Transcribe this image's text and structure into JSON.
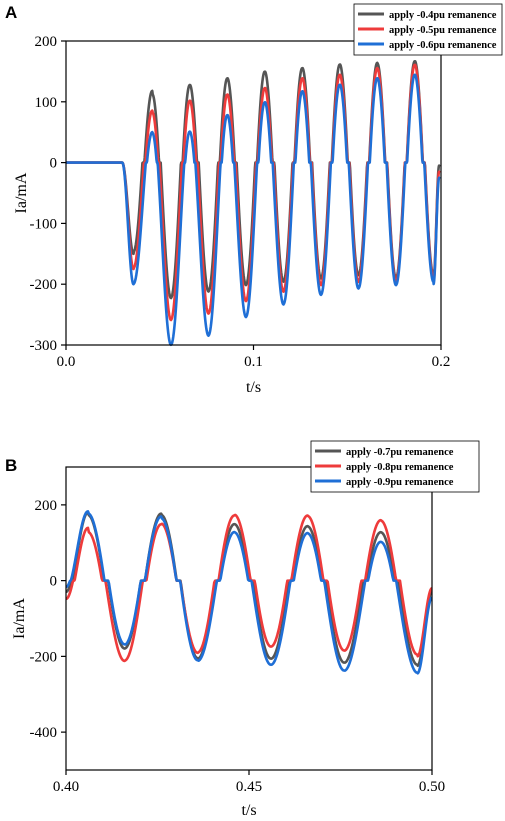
{
  "chart_data": [
    {
      "panel_label": "A",
      "type": "line",
      "xlabel": "t/s",
      "ylabel": "Ia/mA",
      "xlim": [
        0.0,
        0.2
      ],
      "ylim": [
        -300,
        200
      ],
      "xticks": [
        0.0,
        0.1,
        0.2
      ],
      "xtick_labels": [
        "0.0",
        "0.1",
        "0.2"
      ],
      "yticks": [
        200,
        100,
        0,
        -100,
        -200,
        -300
      ],
      "ytick_labels": [
        "200",
        "100",
        "0",
        "-100",
        "-200",
        "-300"
      ],
      "legend_position": "top-right",
      "grid": false,
      "series": [
        {
          "name": "apply  -0.4pu remanence",
          "color": "#555555",
          "x": [
            0.0,
            0.03,
            0.036,
            0.046,
            0.056,
            0.066,
            0.076,
            0.086,
            0.096,
            0.106,
            0.116,
            0.126,
            0.136,
            0.146,
            0.156,
            0.166,
            0.176,
            0.186,
            0.196,
            0.199
          ],
          "y": [
            0,
            0,
            -150,
            125,
            -225,
            140,
            -215,
            150,
            -205,
            160,
            -200,
            165,
            -195,
            170,
            -190,
            172,
            -195,
            175,
            -190,
            -5
          ]
        },
        {
          "name": "apply  -0.5pu remanence",
          "color": "#ee3b3b",
          "x": [
            0.0,
            0.03,
            0.036,
            0.046,
            0.056,
            0.066,
            0.076,
            0.086,
            0.096,
            0.106,
            0.116,
            0.126,
            0.136,
            0.146,
            0.156,
            0.166,
            0.176,
            0.186,
            0.196,
            0.199
          ],
          "y": [
            0,
            0,
            -175,
            95,
            -260,
            115,
            -250,
            125,
            -230,
            135,
            -215,
            150,
            -205,
            155,
            -200,
            165,
            -200,
            170,
            -195,
            -15
          ]
        },
        {
          "name": "apply  -0.6pu remanence",
          "color": "#1f6fd6",
          "x": [
            0.0,
            0.03,
            0.036,
            0.046,
            0.056,
            0.066,
            0.076,
            0.086,
            0.096,
            0.106,
            0.116,
            0.126,
            0.136,
            0.146,
            0.156,
            0.166,
            0.176,
            0.186,
            0.196,
            0.199
          ],
          "y": [
            0,
            0,
            -200,
            58,
            -300,
            60,
            -285,
            90,
            -255,
            112,
            -235,
            130,
            -220,
            140,
            -210,
            150,
            -205,
            155,
            -200,
            -25
          ]
        }
      ]
    },
    {
      "panel_label": "B",
      "type": "line",
      "xlabel": "t/s",
      "ylabel": "Ia/mA",
      "xlim": [
        0.4,
        0.5
      ],
      "ylim": [
        -500,
        300
      ],
      "xticks": [
        0.4,
        0.45,
        0.5
      ],
      "xtick_labels": [
        "0.40",
        "0.45",
        "0.50"
      ],
      "yticks": [
        200,
        0,
        -200,
        -400
      ],
      "ytick_labels": [
        "200",
        "0",
        "-200",
        "-400"
      ],
      "legend_position": "top-right",
      "grid": false,
      "series": [
        {
          "name": "apply  -0.7pu remanence",
          "color": "#555555",
          "x": [
            0.4,
            0.406,
            0.416,
            0.426,
            0.436,
            0.446,
            0.456,
            0.466,
            0.476,
            0.486,
            0.496,
            0.5
          ],
          "y": [
            -35,
            180,
            -185,
            183,
            -210,
            160,
            -210,
            155,
            -220,
            140,
            -225,
            -30
          ]
        },
        {
          "name": "apply  -0.8pu remanence",
          "color": "#ee3b3b",
          "x": [
            0.4,
            0.406,
            0.416,
            0.426,
            0.436,
            0.446,
            0.456,
            0.466,
            0.476,
            0.486,
            0.496,
            0.5
          ],
          "y": [
            -55,
            140,
            -215,
            160,
            -195,
            180,
            -180,
            178,
            -190,
            168,
            -200,
            -20
          ]
        },
        {
          "name": "apply  -0.9pu remanence",
          "color": "#1f6fd6",
          "x": [
            0.4,
            0.406,
            0.416,
            0.426,
            0.436,
            0.446,
            0.456,
            0.466,
            0.476,
            0.486,
            0.496,
            0.5
          ],
          "y": [
            -20,
            183,
            -175,
            175,
            -215,
            140,
            -225,
            138,
            -240,
            115,
            -245,
            -45
          ]
        }
      ]
    }
  ]
}
